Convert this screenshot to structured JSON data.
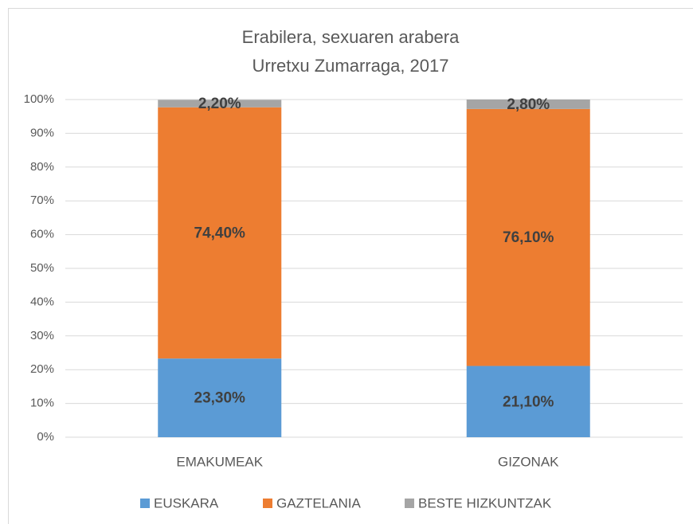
{
  "chart_data": {
    "type": "stacked_bar",
    "title": "Erabilera, sexuaren arabera",
    "subtitle": "Urretxu Zumarraga, 2017",
    "categories": [
      "EMAKUMEAK",
      "GIZONAK"
    ],
    "series": [
      {
        "name": "EUSKARA",
        "color": "#5b9bd5",
        "values": [
          23.3,
          21.1
        ],
        "value_labels": [
          "23,30%",
          "21,10%"
        ]
      },
      {
        "name": "GAZTELANIA",
        "color": "#ed7d31",
        "values": [
          74.4,
          76.1
        ],
        "value_labels": [
          "74,40%",
          "76,10%"
        ]
      },
      {
        "name": "BESTE HIZKUNTZAK",
        "color": "#a5a5a5",
        "values": [
          2.2,
          2.8
        ],
        "value_labels": [
          "2,20%",
          "2,80%"
        ]
      }
    ],
    "ylim": [
      0,
      100
    ],
    "yticks": [
      {
        "value": 0,
        "label": "0%"
      },
      {
        "value": 10,
        "label": "10%"
      },
      {
        "value": 20,
        "label": "20%"
      },
      {
        "value": 30,
        "label": "30%"
      },
      {
        "value": 40,
        "label": "40%"
      },
      {
        "value": 50,
        "label": "50%"
      },
      {
        "value": 60,
        "label": "60%"
      },
      {
        "value": 70,
        "label": "70%"
      },
      {
        "value": 80,
        "label": "80%"
      },
      {
        "value": 90,
        "label": "90%"
      },
      {
        "value": 100,
        "label": "100%"
      }
    ],
    "grid": true,
    "legend": "bottom"
  }
}
